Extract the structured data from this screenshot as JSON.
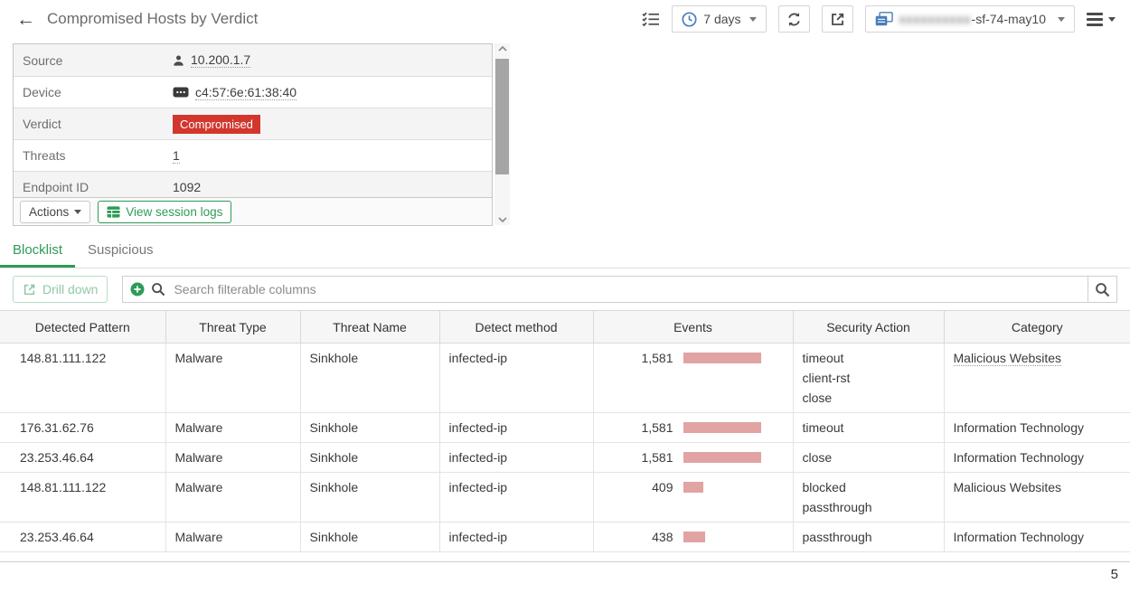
{
  "header": {
    "title": "Compromised Hosts by Verdict",
    "time_range_label": "7 days",
    "device_selector": {
      "redacted_placeholder": "xxxxxxxxxx",
      "visible_suffix": "-sf-74-may10"
    }
  },
  "detail_panel": {
    "rows": [
      {
        "label": "Source",
        "value": "10.200.1.7"
      },
      {
        "label": "Device",
        "value": "c4:57:6e:61:38:40"
      },
      {
        "label": "Verdict",
        "value": "Compromised"
      },
      {
        "label": "Threats",
        "value": "1"
      },
      {
        "label": "Endpoint ID",
        "value": "1092"
      }
    ],
    "actions_label": "Actions",
    "view_session_logs_label": "View session logs"
  },
  "tabs": [
    {
      "label": "Blocklist",
      "active": true
    },
    {
      "label": "Suspicious",
      "active": false
    }
  ],
  "toolbar": {
    "drill_down_label": "Drill down",
    "search_placeholder": "Search filterable columns"
  },
  "table": {
    "columns": [
      "Detected Pattern",
      "Threat Type",
      "Threat Name",
      "Detect method",
      "Events",
      "Security Action",
      "Category"
    ],
    "events_max": 1581,
    "rows": [
      {
        "detected_pattern": "148.81.111.122",
        "threat_type": "Malware",
        "threat_name": "Sinkhole",
        "detect_method": "infected-ip",
        "events": "1,581",
        "events_value": 1581,
        "security_actions": [
          "timeout",
          "client-rst",
          "close"
        ],
        "category": "Malicious Websites",
        "category_underlined": true
      },
      {
        "detected_pattern": "176.31.62.76",
        "threat_type": "Malware",
        "threat_name": "Sinkhole",
        "detect_method": "infected-ip",
        "events": "1,581",
        "events_value": 1581,
        "security_actions": [
          "timeout"
        ],
        "category": "Information Technology",
        "category_underlined": false
      },
      {
        "detected_pattern": "23.253.46.64",
        "threat_type": "Malware",
        "threat_name": "Sinkhole",
        "detect_method": "infected-ip",
        "events": "1,581",
        "events_value": 1581,
        "security_actions": [
          "close"
        ],
        "category": "Information Technology",
        "category_underlined": false
      },
      {
        "detected_pattern": "148.81.111.122",
        "threat_type": "Malware",
        "threat_name": "Sinkhole",
        "detect_method": "infected-ip",
        "events": "409",
        "events_value": 409,
        "security_actions": [
          "blocked",
          "passthrough"
        ],
        "category": "Malicious Websites",
        "category_underlined": false
      },
      {
        "detected_pattern": "23.253.46.64",
        "threat_type": "Malware",
        "threat_name": "Sinkhole",
        "detect_method": "infected-ip",
        "events": "438",
        "events_value": 438,
        "security_actions": [
          "passthrough"
        ],
        "category": "Information Technology",
        "category_underlined": false
      }
    ]
  },
  "footer": {
    "page_indicator": "5"
  },
  "colors": {
    "accent_green": "#2e9b57",
    "badge_red": "#d2372e",
    "events_bar_pink": "#e2a3a3"
  },
  "icons": [
    "back-arrow-icon",
    "checklist-icon",
    "clock-icon",
    "refresh-icon",
    "export-icon",
    "devices-icon",
    "hamburger-menu-icon",
    "user-icon",
    "mac-address-icon",
    "table-icon",
    "plus-circle-icon",
    "search-icon",
    "scroll-up-icon",
    "scroll-down-icon"
  ]
}
